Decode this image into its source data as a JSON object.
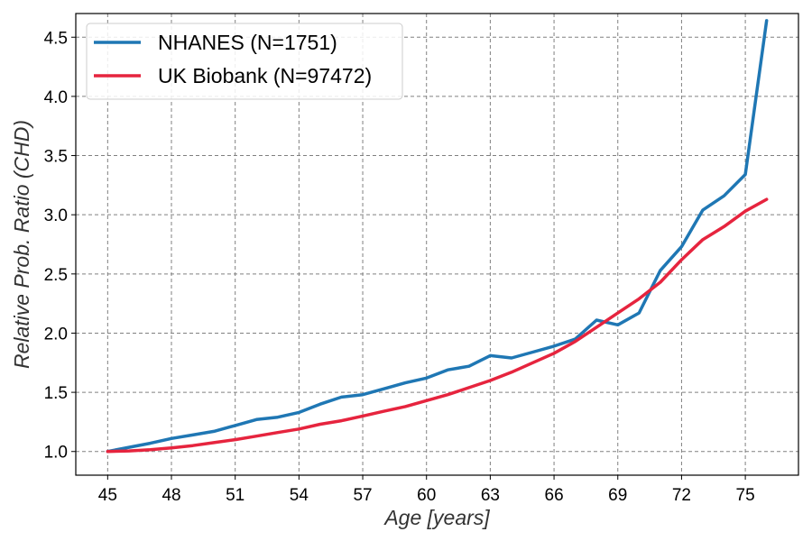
{
  "chart_data": {
    "type": "line",
    "title": "",
    "xlabel": "Age [years]",
    "ylabel": "Relative Prob. Ratio (CHD)",
    "xlim": [
      43.5,
      77.5
    ],
    "ylim": [
      0.8,
      4.7
    ],
    "xticks": [
      45,
      48,
      51,
      54,
      57,
      60,
      63,
      66,
      69,
      72,
      75
    ],
    "yticks": [
      1.0,
      1.5,
      2.0,
      2.5,
      3.0,
      3.5,
      4.0,
      4.5
    ],
    "grid": true,
    "legend_position": "top-left",
    "x": [
      45,
      46,
      47,
      48,
      49,
      50,
      51,
      52,
      53,
      54,
      55,
      56,
      57,
      58,
      59,
      60,
      61,
      62,
      63,
      64,
      65,
      66,
      67,
      68,
      69,
      70,
      71,
      72,
      73,
      74,
      75,
      76
    ],
    "series": [
      {
        "name": "NHANES (N=1751)",
        "color": "#1f77b4",
        "values": [
          1.0,
          1.035,
          1.07,
          1.11,
          1.14,
          1.17,
          1.22,
          1.27,
          1.29,
          1.33,
          1.4,
          1.46,
          1.48,
          1.53,
          1.58,
          1.62,
          1.69,
          1.72,
          1.81,
          1.79,
          1.84,
          1.89,
          1.95,
          2.11,
          2.07,
          2.17,
          2.53,
          2.73,
          3.04,
          3.16,
          3.34,
          4.64
        ]
      },
      {
        "name": "UK Biobank (N=97472)",
        "color": "#e6243e",
        "values": [
          1.0,
          1.005,
          1.015,
          1.03,
          1.05,
          1.075,
          1.1,
          1.13,
          1.16,
          1.19,
          1.23,
          1.26,
          1.3,
          1.34,
          1.38,
          1.43,
          1.48,
          1.54,
          1.6,
          1.67,
          1.75,
          1.83,
          1.93,
          2.05,
          2.17,
          2.29,
          2.43,
          2.62,
          2.79,
          2.9,
          3.03,
          3.13
        ]
      }
    ]
  }
}
